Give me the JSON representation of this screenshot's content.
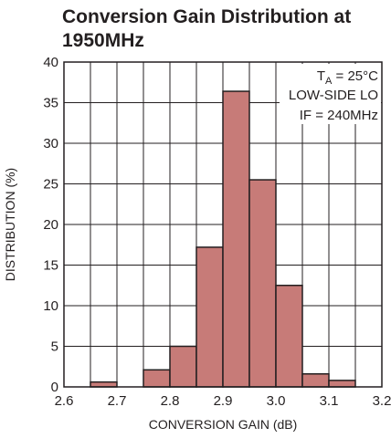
{
  "chart_data": {
    "type": "bar",
    "title_lines": [
      "Conversion Gain Distribution at",
      "1950MHz"
    ],
    "xlabel": "CONVERSION GAIN (dB)",
    "ylabel": "DISTRIBUTION (%)",
    "xlim": [
      2.6,
      3.2
    ],
    "ylim": [
      0,
      40
    ],
    "x_ticks": [
      "2.6",
      "2.7",
      "2.8",
      "2.9",
      "3.0",
      "3.1",
      "3.2"
    ],
    "y_ticks": [
      "0",
      "5",
      "10",
      "15",
      "20",
      "25",
      "30",
      "35",
      "40"
    ],
    "bin_width": 0.05,
    "bins": [
      {
        "start": 2.6,
        "value": 0
      },
      {
        "start": 2.65,
        "value": 0.6
      },
      {
        "start": 2.7,
        "value": 0
      },
      {
        "start": 2.75,
        "value": 2.1
      },
      {
        "start": 2.8,
        "value": 5.0
      },
      {
        "start": 2.85,
        "value": 17.2
      },
      {
        "start": 2.9,
        "value": 36.4
      },
      {
        "start": 2.95,
        "value": 25.5
      },
      {
        "start": 3.0,
        "value": 12.5
      },
      {
        "start": 3.05,
        "value": 1.6
      },
      {
        "start": 3.1,
        "value": 0.8
      },
      {
        "start": 3.15,
        "value": 0
      }
    ],
    "grid": true,
    "bar_color": "#c77b78",
    "annotations": {
      "line1_main": "T",
      "line1_sub": "A",
      "line1_rest": " = 25°C",
      "line2": "LOW-SIDE LO",
      "line3": "IF = 240MHz"
    }
  }
}
